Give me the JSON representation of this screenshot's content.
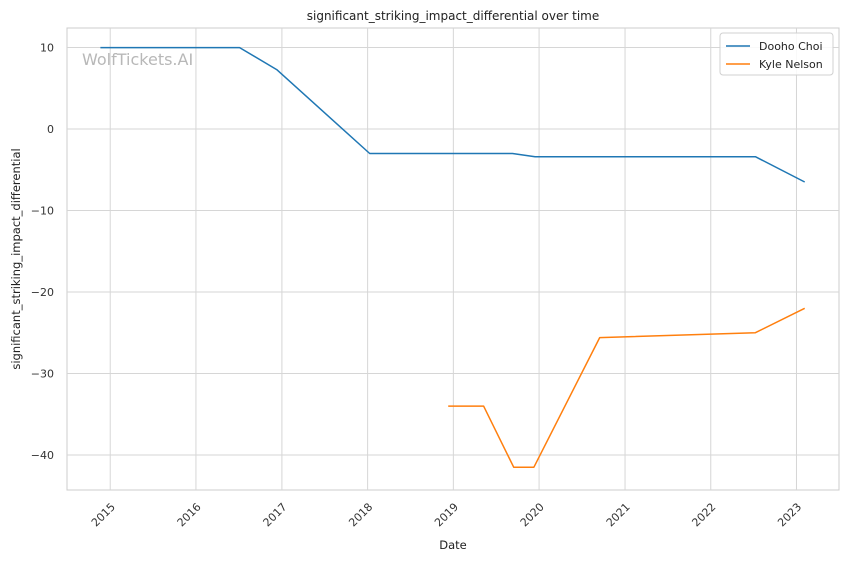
{
  "chart_data": {
    "type": "line",
    "title": "significant_striking_impact_differential over time",
    "xlabel": "Date",
    "ylabel": "significant_striking_impact_differential",
    "watermark": "WolfTickets.AI",
    "x_axis": "date",
    "xlim": [
      "2014-07-01",
      "2023-07-01"
    ],
    "ylim": [
      -44.3,
      12.4
    ],
    "x_ticks": [
      "2015",
      "2016",
      "2017",
      "2018",
      "2019",
      "2020",
      "2021",
      "2022",
      "2023"
    ],
    "y_ticks": [
      10,
      0,
      -10,
      -20,
      -30,
      -40
    ],
    "y_tick_labels": [
      "10",
      "0",
      "−10",
      "−20",
      "−30",
      "−40"
    ],
    "grid": true,
    "legend_position": "top-right",
    "series": [
      {
        "name": "Dooho Choi",
        "color": "#1f77b4",
        "points": [
          {
            "x": "2014-11-20",
            "y": 10
          },
          {
            "x": "2016-07-05",
            "y": 10
          },
          {
            "x": "2016-12-10",
            "y": 7.3
          },
          {
            "x": "2018-01-10",
            "y": -3
          },
          {
            "x": "2019-09-10",
            "y": -3
          },
          {
            "x": "2019-12-15",
            "y": -3.4
          },
          {
            "x": "2022-07-10",
            "y": -3.4
          },
          {
            "x": "2023-02-05",
            "y": -6.5
          }
        ]
      },
      {
        "name": "Kyle Nelson",
        "color": "#ff7f0e",
        "points": [
          {
            "x": "2018-12-10",
            "y": -34
          },
          {
            "x": "2019-05-10",
            "y": -34
          },
          {
            "x": "2019-09-15",
            "y": -41.5
          },
          {
            "x": "2019-12-10",
            "y": -41.5
          },
          {
            "x": "2020-09-15",
            "y": -25.6
          },
          {
            "x": "2022-07-10",
            "y": -25
          },
          {
            "x": "2023-02-05",
            "y": -22
          }
        ]
      }
    ]
  }
}
